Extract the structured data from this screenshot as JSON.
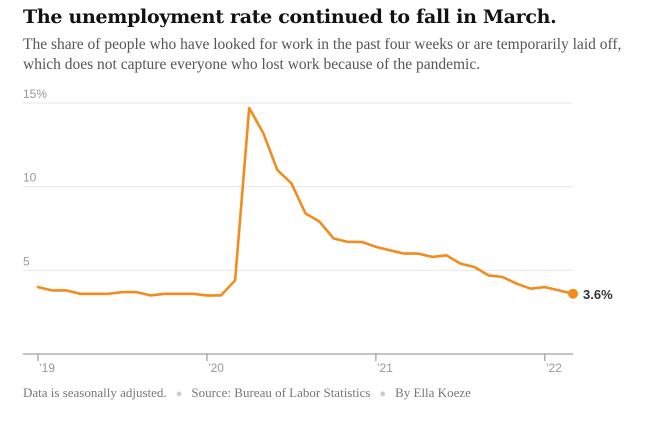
{
  "header": {
    "title": "The unemployment rate continued to fall in March.",
    "subtitle": "The share of people who have looked for work in the past four weeks or are temporarily laid off, which does not capture everyone who lost work because of the pandemic."
  },
  "footer": {
    "note": "Data is seasonally adjusted.",
    "source": "Source: Bureau of Labor Statistics",
    "byline": "By Ella Koeze"
  },
  "colors": {
    "line": "#f28c1e",
    "grid": "#e6e6e6",
    "axis": "#888888"
  },
  "chart_data": {
    "type": "line",
    "title": "The unemployment rate continued to fall in March.",
    "xlabel": "",
    "ylabel": "",
    "ylim": [
      0,
      15
    ],
    "grid": true,
    "y_ticks": [
      {
        "value": 15,
        "label": "15%"
      },
      {
        "value": 10,
        "label": "10"
      },
      {
        "value": 5,
        "label": "5"
      }
    ],
    "x_ticks": [
      {
        "index": 0,
        "label": "’19"
      },
      {
        "index": 12,
        "label": "’20"
      },
      {
        "index": 24,
        "label": "’21"
      },
      {
        "index": 36,
        "label": "’22"
      }
    ],
    "series": [
      {
        "name": "Unemployment rate",
        "x": [
          "2019-01",
          "2019-02",
          "2019-03",
          "2019-04",
          "2019-05",
          "2019-06",
          "2019-07",
          "2019-08",
          "2019-09",
          "2019-10",
          "2019-11",
          "2019-12",
          "2020-01",
          "2020-02",
          "2020-03",
          "2020-04",
          "2020-05",
          "2020-06",
          "2020-07",
          "2020-08",
          "2020-09",
          "2020-10",
          "2020-11",
          "2020-12",
          "2021-01",
          "2021-02",
          "2021-03",
          "2021-04",
          "2021-05",
          "2021-06",
          "2021-07",
          "2021-08",
          "2021-09",
          "2021-10",
          "2021-11",
          "2021-12",
          "2022-01",
          "2022-02",
          "2022-03"
        ],
        "values": [
          4.0,
          3.8,
          3.8,
          3.6,
          3.6,
          3.6,
          3.7,
          3.7,
          3.5,
          3.6,
          3.6,
          3.6,
          3.5,
          3.5,
          4.4,
          14.7,
          13.2,
          11.0,
          10.2,
          8.4,
          7.9,
          6.9,
          6.7,
          6.7,
          6.4,
          6.2,
          6.0,
          6.0,
          5.8,
          5.9,
          5.4,
          5.2,
          4.7,
          4.6,
          4.2,
          3.9,
          4.0,
          3.8,
          3.6
        ],
        "end_label": "3.6%"
      }
    ]
  }
}
